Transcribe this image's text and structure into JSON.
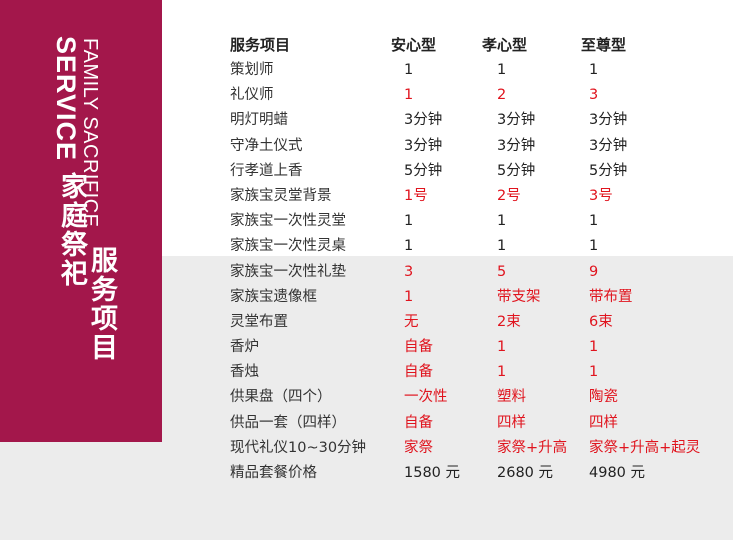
{
  "sidebar": {
    "en_line1": "FAMILY SACRIFICE",
    "en_line2": "SERVICE",
    "cn_line1": "家庭祭祀",
    "cn_line2": "服务项目"
  },
  "table": {
    "headers": [
      "服务项目",
      "安心型",
      "孝心型",
      "至尊型"
    ],
    "rows": [
      {
        "item": "策划师",
        "v1": "1",
        "v2": "1",
        "v3": "1"
      },
      {
        "item": "礼仪师",
        "v1": "1",
        "v2": "2",
        "v3": "3"
      },
      {
        "item": "明灯明蜡",
        "v1": "3分钟",
        "v2": "3分钟",
        "v3": "3分钟"
      },
      {
        "item": "守净土仪式",
        "v1": "3分钟",
        "v2": "3分钟",
        "v3": "3分钟"
      },
      {
        "item": "行孝道上香",
        "v1": "5分钟",
        "v2": "5分钟",
        "v3": "5分钟"
      },
      {
        "item": "家族宝灵堂背景",
        "v1": "1号",
        "v2": "2号",
        "v3": "3号"
      },
      {
        "item": "家族宝一次性灵堂",
        "v1": "1",
        "v2": "1",
        "v3": "1"
      },
      {
        "item": "家族宝一次性灵桌",
        "v1": "1",
        "v2": "1",
        "v3": "1"
      },
      {
        "item": "家族宝一次性礼垫",
        "v1": "3",
        "v2": "5",
        "v3": "9"
      },
      {
        "item": "家族宝遗像框",
        "v1": "1",
        "v2": "带支架",
        "v3": "带布置"
      },
      {
        "item": "灵堂布置",
        "v1": "无",
        "v2": "2束",
        "v3": "6束"
      },
      {
        "item": "香炉",
        "v1": "自备",
        "v2": "1",
        "v3": "1"
      },
      {
        "item": "香烛",
        "v1": "自备",
        "v2": "1",
        "v3": "1"
      },
      {
        "item": "供果盘（四个）",
        "v1": "一次性",
        "v2": "塑料",
        "v3": "陶瓷"
      },
      {
        "item": "供品一套（四样）",
        "v1": "自备",
        "v2": "四样",
        "v3": "四样"
      },
      {
        "item": "现代礼仪10~30分钟",
        "v1": "家祭",
        "v2": "家祭+升高",
        "v3": "家祭+升高+起灵"
      },
      {
        "item": "精品套餐价格",
        "v1": "1580 元",
        "v2": "2680 元",
        "v3": "4980 元"
      }
    ]
  },
  "colors": {
    "sidebar": "#a3174b",
    "accent_red": "#e0141e",
    "lower_background": "#ececec"
  }
}
